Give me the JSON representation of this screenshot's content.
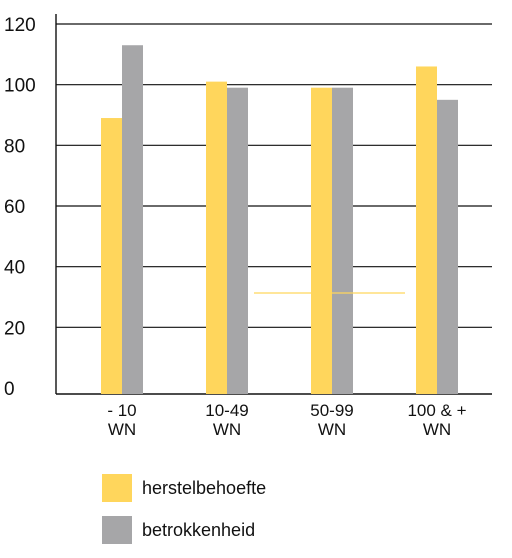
{
  "chart_data": {
    "type": "bar",
    "categories": [
      [
        "- 10",
        "WN"
      ],
      [
        "10-49",
        "WN"
      ],
      [
        "50-99",
        "WN"
      ],
      [
        "100 & +",
        "WN"
      ]
    ],
    "series": [
      {
        "name": "herstelbehoefte",
        "color": "#FFD65C",
        "values": [
          89,
          101,
          99,
          106
        ]
      },
      {
        "name": "betrokkenheid",
        "color": "#A6A6A8",
        "values": [
          113,
          99,
          99,
          95
        ]
      }
    ],
    "yticks": [
      0,
      20,
      40,
      60,
      80,
      100,
      120
    ],
    "ylim": [
      0,
      120
    ],
    "grid": true,
    "legend_position": "bottom-left"
  }
}
